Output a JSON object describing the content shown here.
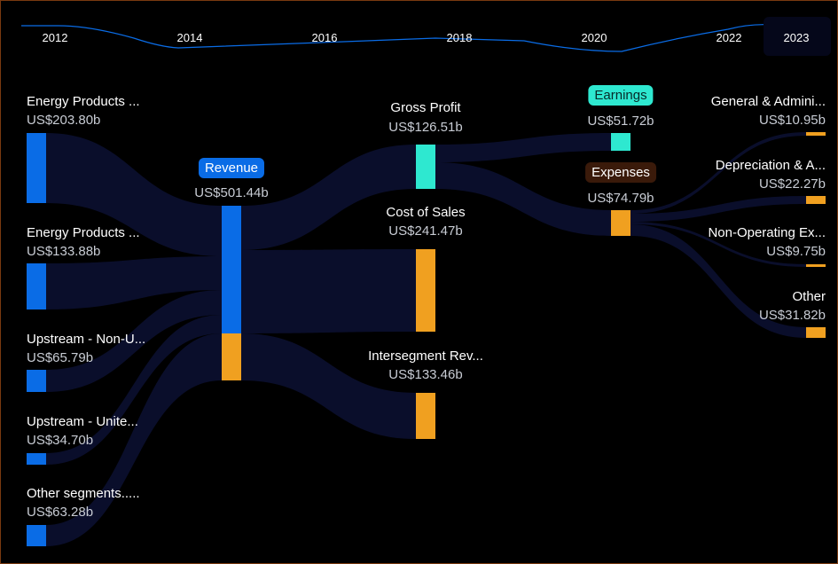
{
  "timeline": {
    "years": [
      "2012",
      "2014",
      "2016",
      "2018",
      "2020",
      "2022",
      "2023"
    ],
    "selected": "2023"
  },
  "colors": {
    "revenue": "#0a6ce6",
    "cost": "#f0a020",
    "profit": "#2ee8d0",
    "expenses_pill": "#3a1a0a",
    "link": "#0b1030"
  },
  "sources": [
    {
      "label": "Energy Products ...",
      "value": "US$203.80b"
    },
    {
      "label": "Energy Products ...",
      "value": "US$133.88b"
    },
    {
      "label": "Upstream - Non-U...",
      "value": "US$65.79b"
    },
    {
      "label": "Upstream - Unite...",
      "value": "US$34.70b"
    },
    {
      "label": "Other segments.....",
      "value": "US$63.28b"
    }
  ],
  "revenue": {
    "label": "Revenue",
    "value": "US$501.44b"
  },
  "middle": [
    {
      "label": "Gross Profit",
      "value": "US$126.51b"
    },
    {
      "label": "Cost of Sales",
      "value": "US$241.47b"
    },
    {
      "label": "Intersegment Rev...",
      "value": "US$133.46b"
    }
  ],
  "earnings": {
    "label": "Earnings",
    "value": "US$51.72b"
  },
  "expenses": {
    "label": "Expenses",
    "value": "US$74.79b"
  },
  "expense_items": [
    {
      "label": "General & Admini...",
      "value": "US$10.95b"
    },
    {
      "label": "Depreciation & A...",
      "value": "US$22.27b"
    },
    {
      "label": "Non-Operating Ex...",
      "value": "US$9.75b"
    },
    {
      "label": "Other",
      "value": "US$31.82b"
    }
  ]
}
